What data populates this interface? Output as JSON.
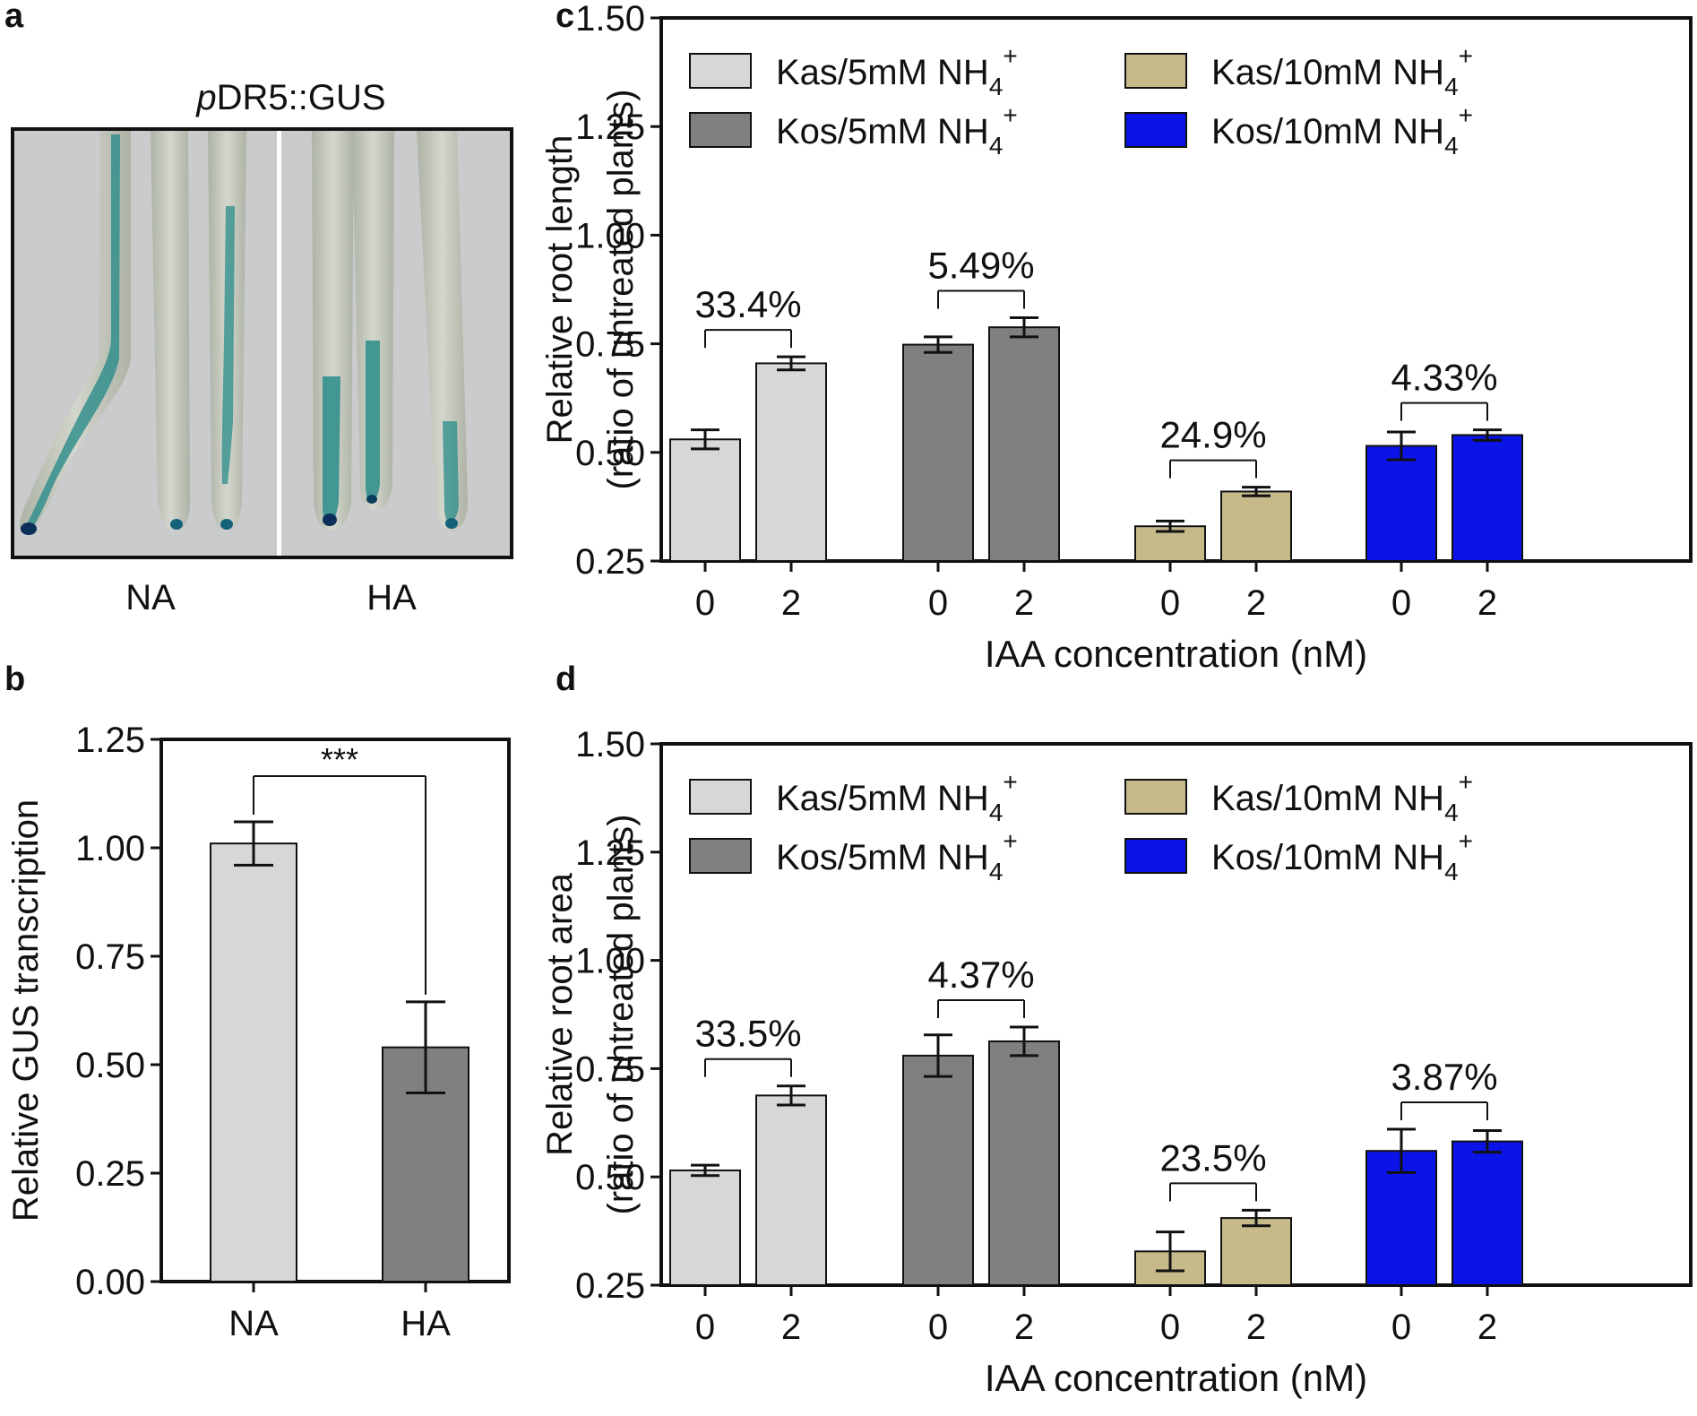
{
  "panels": {
    "a": {
      "letter": "a",
      "title_italic": "p",
      "title_rest": "DR5::GUS",
      "labels": [
        "NA",
        "HA"
      ],
      "colors": {
        "background": "#c9cbcc",
        "root": "#b8bcae",
        "stain": "#1f8a8a",
        "tip": "#0b2f5a"
      }
    },
    "b": {
      "letter": "b"
    },
    "c": {
      "letter": "c"
    },
    "d": {
      "letter": "d"
    }
  },
  "chart_data": [
    {
      "id": "b",
      "type": "bar",
      "categories": [
        "NA",
        "HA"
      ],
      "values": [
        1.01,
        0.54
      ],
      "errors": [
        0.05,
        0.105
      ],
      "colors": [
        "#d7d7d7",
        "#808080"
      ],
      "ylabel": "Relative GUS transcription",
      "ylim": [
        0,
        1.25
      ],
      "yticks": [
        "0.00",
        "0.25",
        "0.50",
        "0.75",
        "1.00",
        "1.25"
      ],
      "significance": {
        "between": [
          0,
          1
        ],
        "label": "***"
      }
    },
    {
      "id": "c",
      "type": "bar",
      "x_tick_labels": [
        "0",
        "2"
      ],
      "xlabel": "IAA concentration (nM)",
      "ylabel_line1": "Relative root length",
      "ylabel_line2": "(ratio of untreated plants)",
      "ylim": [
        0.25,
        1.5
      ],
      "yticks": [
        "0.25",
        "0.50",
        "0.75",
        "1.00",
        "1.25",
        "1.50"
      ],
      "legend_position": "top",
      "series": [
        {
          "name": "Kas/5mM NH",
          "sub": "4",
          "sup": "+",
          "color": "#d7d7d7",
          "values": [
            0.53,
            0.705
          ],
          "errors": [
            0.022,
            0.015
          ],
          "annotation": "33.4%"
        },
        {
          "name": "Kos/5mM NH",
          "sub": "4",
          "sup": "+",
          "color": "#808080",
          "values": [
            0.748,
            0.788
          ],
          "errors": [
            0.018,
            0.022
          ],
          "annotation": "5.49%"
        },
        {
          "name": "Kas/10mM NH",
          "sub": "4",
          "sup": "+",
          "color": "#c6ba8b",
          "values": [
            0.33,
            0.41
          ],
          "errors": [
            0.012,
            0.01
          ],
          "annotation": "24.9%"
        },
        {
          "name": "Kos/10mM NH",
          "sub": "4",
          "sup": "+",
          "color": "#0a14e6",
          "values": [
            0.515,
            0.54
          ],
          "errors": [
            0.032,
            0.012
          ],
          "annotation": "4.33%"
        }
      ]
    },
    {
      "id": "d",
      "type": "bar",
      "x_tick_labels": [
        "0",
        "2"
      ],
      "xlabel": "IAA concentration (nM)",
      "ylabel_line1": "Relative root area",
      "ylabel_line2": "(ratio of untreated plants)",
      "ylim": [
        0.25,
        1.5
      ],
      "yticks": [
        "0.25",
        "0.50",
        "0.75",
        "1.00",
        "1.25",
        "1.50"
      ],
      "legend_position": "top",
      "series": [
        {
          "name": "Kas/5mM NH",
          "sub": "4",
          "sup": "+",
          "color": "#d7d7d7",
          "values": [
            0.515,
            0.688
          ],
          "errors": [
            0.012,
            0.022
          ],
          "annotation": "33.5%"
        },
        {
          "name": "Kos/5mM NH",
          "sub": "4",
          "sup": "+",
          "color": "#808080",
          "values": [
            0.78,
            0.813
          ],
          "errors": [
            0.048,
            0.033
          ],
          "annotation": "4.37%"
        },
        {
          "name": "Kas/10mM NH",
          "sub": "4",
          "sup": "+",
          "color": "#c6ba8b",
          "values": [
            0.328,
            0.405
          ],
          "errors": [
            0.045,
            0.018
          ],
          "annotation": "23.5%"
        },
        {
          "name": "Kos/10mM NH",
          "sub": "4",
          "sup": "+",
          "color": "#0a14e6",
          "values": [
            0.56,
            0.582
          ],
          "errors": [
            0.05,
            0.025
          ],
          "annotation": "3.87%"
        }
      ]
    }
  ]
}
